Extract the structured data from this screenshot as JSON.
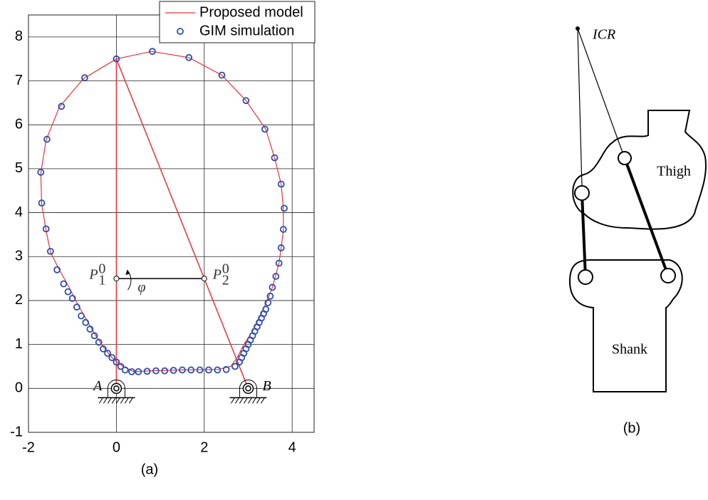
{
  "chart_data": {
    "type": "line-scatter",
    "caption": "(a)",
    "xlim": [
      -2,
      4.5
    ],
    "ylim": [
      -1,
      8.5
    ],
    "xticks": [
      -2,
      0,
      2,
      4
    ],
    "yticks": [
      -1,
      0,
      1,
      2,
      3,
      4,
      5,
      6,
      7,
      8
    ],
    "grid": true,
    "legend": "upper right",
    "series": [
      {
        "name": "Proposed model",
        "color": "#e8323c",
        "mode": "line",
        "x": [
          0,
          0.8,
          1.65,
          2.4,
          2.95,
          3.4,
          3.6,
          3.75,
          3.8,
          3.8,
          3.75,
          3.7,
          3.62,
          3.55,
          3.45,
          3.3,
          3.1,
          2.9,
          2.75,
          2.6,
          2.3,
          1.5,
          0.8,
          0.4,
          0.15,
          -0.1,
          -0.3,
          -0.5,
          -0.7,
          -0.9,
          -1.1,
          -1.3,
          -1.5,
          -1.6,
          -1.7,
          -1.72,
          -1.6,
          -1.3,
          -0.75,
          0
        ],
        "values": [
          7.5,
          7.67,
          7.53,
          7.13,
          6.55,
          5.9,
          5.25,
          4.65,
          4.1,
          3.6,
          3.2,
          2.85,
          2.55,
          2.3,
          2.05,
          1.7,
          1.3,
          1.0,
          0.7,
          0.5,
          0.43,
          0.42,
          0.4,
          0.38,
          0.5,
          0.7,
          0.95,
          1.25,
          1.6,
          1.95,
          2.35,
          2.7,
          3.1,
          3.6,
          4.2,
          4.9,
          5.65,
          6.4,
          7.05,
          7.5
        ]
      },
      {
        "name": "GIM simulation",
        "color": "#2b4fb0",
        "mode": "markers",
        "x": [
          0,
          0.82,
          1.65,
          2.4,
          2.95,
          3.38,
          3.6,
          3.75,
          3.82,
          3.8,
          3.75,
          3.7,
          3.63,
          3.55,
          3.5,
          3.45,
          3.4,
          3.35,
          3.3,
          3.25,
          3.2,
          3.15,
          3.1,
          3.05,
          3.0,
          2.95,
          2.9,
          2.85,
          2.8,
          2.7,
          2.5,
          2.3,
          2.1,
          1.9,
          1.7,
          1.5,
          1.3,
          1.1,
          0.9,
          0.7,
          0.5,
          0.35,
          0.2,
          0.1,
          0,
          -0.1,
          -0.2,
          -0.3,
          -0.4,
          -0.5,
          -0.6,
          -0.7,
          -0.8,
          -0.9,
          -1.0,
          -1.1,
          -1.2,
          -1.35,
          -1.5,
          -1.6,
          -1.7,
          -1.72,
          -1.58,
          -1.25,
          -0.72
        ],
        "values": [
          7.5,
          7.67,
          7.53,
          7.13,
          6.55,
          5.9,
          5.25,
          4.65,
          4.1,
          3.62,
          3.2,
          2.85,
          2.55,
          2.3,
          2.1,
          1.95,
          1.8,
          1.7,
          1.6,
          1.5,
          1.4,
          1.3,
          1.2,
          1.1,
          1.0,
          0.9,
          0.8,
          0.7,
          0.6,
          0.5,
          0.43,
          0.42,
          0.42,
          0.42,
          0.42,
          0.42,
          0.41,
          0.4,
          0.4,
          0.39,
          0.38,
          0.38,
          0.42,
          0.5,
          0.6,
          0.7,
          0.8,
          0.9,
          1.05,
          1.2,
          1.35,
          1.5,
          1.65,
          1.85,
          2.05,
          2.2,
          2.38,
          2.7,
          3.12,
          3.63,
          4.22,
          4.92,
          5.67,
          6.42,
          7.07
        ]
      }
    ],
    "links": [
      {
        "color": "#e8323c",
        "x": [
          0,
          0
        ],
        "y": [
          0,
          7.5
        ]
      },
      {
        "color": "#e8323c",
        "x": [
          0,
          3
        ],
        "y": [
          7.5,
          0
        ]
      },
      {
        "color": "#000000",
        "x": [
          0,
          2
        ],
        "y": [
          2.5,
          2.5
        ]
      }
    ],
    "points": [
      {
        "label": "P",
        "sub": "1",
        "sup": "0",
        "x": 0,
        "y": 2.5
      },
      {
        "label": "P",
        "sub": "2",
        "sup": "0",
        "x": 2,
        "y": 2.5
      }
    ],
    "supports": [
      {
        "label": "A",
        "x": 0,
        "y": 0
      },
      {
        "label": "B",
        "x": 3,
        "y": 0
      }
    ],
    "angle_label": "φ"
  },
  "diagram": {
    "icr": "ICR",
    "thigh": "Thigh",
    "shank": "Shank",
    "caption": "(b)"
  }
}
